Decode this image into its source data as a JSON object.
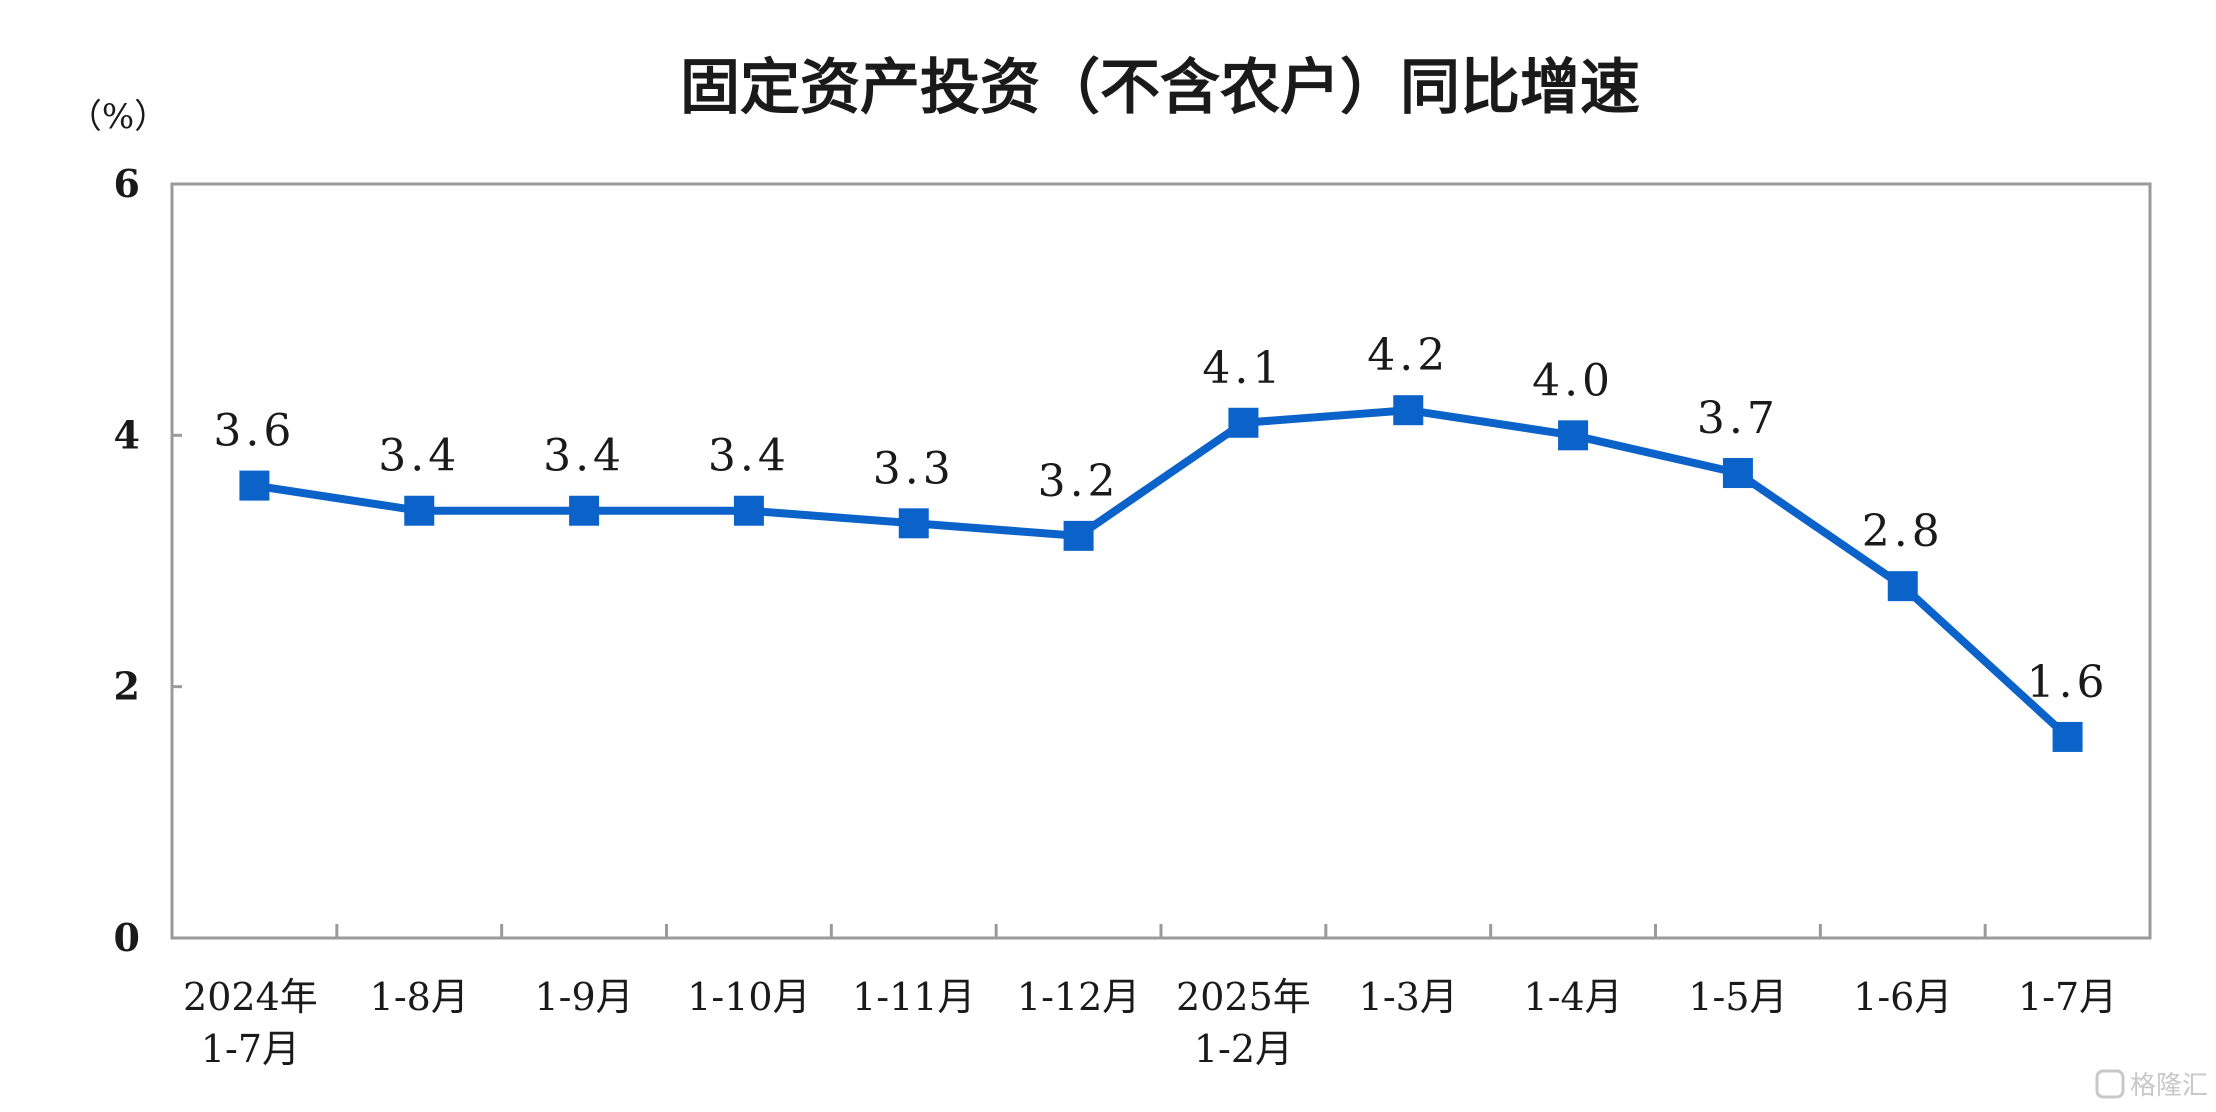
{
  "chart_data": {
    "type": "line",
    "title": "固定资产投资（不含农户）同比增速",
    "unit_label": "（%）",
    "ylim": [
      0,
      6
    ],
    "yticks": [
      "0",
      "2",
      "4",
      "6"
    ],
    "categories": [
      [
        "2024年",
        "1-7月"
      ],
      [
        "1-8月"
      ],
      [
        "1-9月"
      ],
      [
        "1-10月"
      ],
      [
        "1-11月"
      ],
      [
        "1-12月"
      ],
      [
        "2025年",
        "1-2月"
      ],
      [
        "1-3月"
      ],
      [
        "1-4月"
      ],
      [
        "1-5月"
      ],
      [
        "1-6月"
      ],
      [
        "1-7月"
      ]
    ],
    "values": [
      3.6,
      3.4,
      3.4,
      3.4,
      3.3,
      3.2,
      4.1,
      4.2,
      4.0,
      3.7,
      2.8,
      1.6
    ],
    "data_labels": [
      "3.6",
      "3.4",
      "3.4",
      "3.4",
      "3.3",
      "3.2",
      "4.1",
      "4.2",
      "4.0",
      "3.7",
      "2.8",
      "1.6"
    ],
    "grid": false,
    "legend": "none",
    "line_color": "#0b63c9",
    "frame_color": "#9a9a9a"
  },
  "watermark": "格隆汇"
}
